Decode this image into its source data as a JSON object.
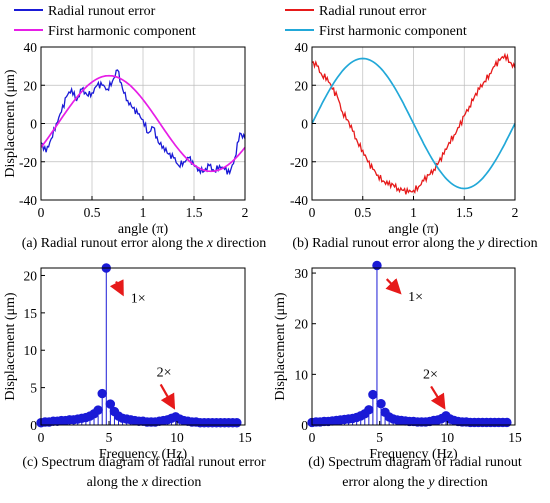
{
  "figure": {
    "panels": [
      {
        "id": "a",
        "caption_parts": [
          "(a) Radial runout error along the ",
          "x",
          " direction"
        ]
      },
      {
        "id": "b",
        "caption_parts": [
          "(b) Radial runout error along the ",
          "y",
          " direction"
        ]
      },
      {
        "id": "c",
        "caption_lines": [
          [
            "(c) Spectrum diagram of radial runout error"
          ],
          [
            "along the ",
            "x",
            " direction"
          ]
        ]
      },
      {
        "id": "d",
        "caption_lines": [
          [
            "(d) Spectrum diagram of radial runout"
          ],
          [
            "error along the ",
            "y",
            " direction"
          ]
        ]
      }
    ]
  },
  "chart_data": [
    {
      "panel": "a",
      "type": "line",
      "xlabel": "angle (π)",
      "ylabel": "Displacement (μm)",
      "xlim": [
        0,
        2
      ],
      "ylim": [
        -40,
        40
      ],
      "xticks": [
        "0",
        "0.5",
        "1",
        "1.5",
        "2"
      ],
      "yticks": [
        "-40",
        "-20",
        "0",
        "20",
        "40"
      ],
      "grid": true,
      "legend_position": "top-left-outside",
      "series": [
        {
          "name": "Radial runout error",
          "color": "#1a1ad6",
          "style": "noisy",
          "x": [
            0,
            0.05,
            0.1,
            0.15,
            0.2,
            0.25,
            0.3,
            0.35,
            0.4,
            0.45,
            0.5,
            0.55,
            0.6,
            0.65,
            0.7,
            0.75,
            0.8,
            0.85,
            0.9,
            0.95,
            1.0,
            1.05,
            1.1,
            1.15,
            1.2,
            1.25,
            1.3,
            1.35,
            1.4,
            1.45,
            1.5,
            1.55,
            1.6,
            1.65,
            1.7,
            1.75,
            1.8,
            1.85,
            1.9,
            1.95,
            2.0
          ],
          "y": [
            -10,
            -15,
            -8,
            0,
            6,
            14,
            18,
            12,
            18,
            15,
            16,
            20,
            20,
            18,
            22,
            28,
            18,
            12,
            8,
            5,
            2,
            -5,
            -2,
            -10,
            -12,
            -16,
            -18,
            -22,
            -20,
            -18,
            -22,
            -24,
            -25,
            -22,
            -25,
            -22,
            -24,
            -26,
            -18,
            -5,
            -8
          ]
        },
        {
          "name": "First harmonic component",
          "color": "#e61ee6",
          "style": "smooth",
          "amplitude": 25,
          "phase_deg": 120
        }
      ]
    },
    {
      "panel": "b",
      "type": "line",
      "xlabel": "angle (π)",
      "ylabel": "",
      "xlim": [
        0,
        2
      ],
      "ylim": [
        -40,
        40
      ],
      "xticks": [
        "0",
        "0.5",
        "1",
        "1.5",
        "2"
      ],
      "yticks": [
        "-40",
        "-20",
        "0",
        "20",
        "40"
      ],
      "grid": true,
      "legend_position": "top-left-outside",
      "series": [
        {
          "name": "Radial runout error",
          "color": "#e61a1a",
          "style": "noisy",
          "x": [
            0,
            0.05,
            0.1,
            0.15,
            0.2,
            0.25,
            0.3,
            0.35,
            0.4,
            0.45,
            0.5,
            0.55,
            0.6,
            0.65,
            0.7,
            0.75,
            0.8,
            0.85,
            0.9,
            0.95,
            1.0,
            1.05,
            1.1,
            1.15,
            1.2,
            1.25,
            1.3,
            1.35,
            1.4,
            1.45,
            1.5,
            1.55,
            1.6,
            1.65,
            1.7,
            1.75,
            1.8,
            1.85,
            1.9,
            1.95,
            2.0
          ],
          "y": [
            32,
            30,
            25,
            24,
            18,
            14,
            6,
            2,
            -4,
            -10,
            -14,
            -20,
            -24,
            -27,
            -30,
            -32,
            -32,
            -34,
            -35,
            -36,
            -35,
            -33,
            -30,
            -27,
            -24,
            -20,
            -16,
            -10,
            -6,
            -2,
            4,
            9,
            14,
            18,
            22,
            26,
            30,
            33,
            36,
            32,
            29
          ]
        },
        {
          "name": "First harmonic component",
          "color": "#22a8d8",
          "style": "smooth",
          "amplitude": 34,
          "phase_deg": 90
        }
      ]
    },
    {
      "panel": "c",
      "type": "stem",
      "xlabel": "Frequency (Hz)",
      "ylabel": "Displacement (μm)",
      "xlim": [
        0,
        15
      ],
      "ylim": [
        0,
        21
      ],
      "xticks": [
        "0",
        "5",
        "10",
        "15"
      ],
      "yticks": [
        "0",
        "5",
        "10",
        "15",
        "20"
      ],
      "grid": false,
      "color": "#1a1ad6",
      "x": [
        0,
        0.3,
        0.6,
        0.9,
        1.2,
        1.5,
        1.8,
        2.1,
        2.4,
        2.7,
        3.0,
        3.3,
        3.6,
        3.9,
        4.2,
        4.5,
        4.8,
        5.1,
        5.4,
        5.7,
        6.0,
        6.3,
        6.6,
        6.9,
        7.2,
        7.5,
        7.8,
        8.1,
        8.4,
        8.7,
        9.0,
        9.3,
        9.6,
        9.9,
        10.2,
        10.5,
        10.8,
        11.1,
        11.4,
        11.7,
        12.0,
        12.3,
        12.6,
        12.9,
        13.2,
        13.5,
        13.8,
        14.1,
        14.4
      ],
      "y": [
        0.3,
        0.4,
        0.4,
        0.5,
        0.5,
        0.6,
        0.6,
        0.7,
        0.7,
        0.8,
        0.9,
        1.0,
        1.2,
        1.5,
        2.0,
        4.2,
        21.0,
        2.8,
        1.8,
        1.2,
        0.9,
        0.8,
        0.7,
        0.6,
        0.5,
        0.5,
        0.4,
        0.4,
        0.4,
        0.5,
        0.6,
        0.7,
        0.9,
        1.1,
        0.8,
        0.6,
        0.5,
        0.4,
        0.4,
        0.3,
        0.3,
        0.3,
        0.3,
        0.3,
        0.3,
        0.3,
        0.3,
        0.3,
        0.3
      ],
      "annotations": [
        {
          "text": "1×",
          "x": 5.3,
          "y": 20.0,
          "label_x": 6.6,
          "label_y": 16.4
        },
        {
          "text": "2×",
          "x": 10.0,
          "y": 1.5,
          "label_x": 8.5,
          "label_y": 6.5
        }
      ]
    },
    {
      "panel": "d",
      "type": "stem",
      "xlabel": "Frequency (Hz)",
      "ylabel": "Displacement (μm)",
      "xlim": [
        0,
        15
      ],
      "ylim": [
        0,
        31
      ],
      "xticks": [
        "0",
        "5",
        "10",
        "15"
      ],
      "yticks": [
        "0",
        "10",
        "20",
        "30"
      ],
      "grid": false,
      "color": "#1a1ad6",
      "x": [
        0,
        0.3,
        0.6,
        0.9,
        1.2,
        1.5,
        1.8,
        2.1,
        2.4,
        2.7,
        3.0,
        3.3,
        3.6,
        3.9,
        4.2,
        4.5,
        4.8,
        5.1,
        5.4,
        5.7,
        6.0,
        6.3,
        6.6,
        6.9,
        7.2,
        7.5,
        7.8,
        8.1,
        8.4,
        8.7,
        9.0,
        9.3,
        9.6,
        9.9,
        10.2,
        10.5,
        10.8,
        11.1,
        11.4,
        11.7,
        12.0,
        12.3,
        12.6,
        12.9,
        13.2,
        13.5,
        13.8,
        14.1,
        14.4
      ],
      "y": [
        0.5,
        0.6,
        0.6,
        0.7,
        0.7,
        0.8,
        0.9,
        1.0,
        1.1,
        1.2,
        1.3,
        1.5,
        1.8,
        2.2,
        3.0,
        6.0,
        31.5,
        4.2,
        2.5,
        1.6,
        1.2,
        1.0,
        0.9,
        0.8,
        0.7,
        0.7,
        0.6,
        0.6,
        0.6,
        0.7,
        0.9,
        1.0,
        1.3,
        1.8,
        1.2,
        0.9,
        0.7,
        0.6,
        0.6,
        0.5,
        0.5,
        0.5,
        0.5,
        0.5,
        0.5,
        0.5,
        0.5,
        0.5,
        0.5
      ],
      "annotations": [
        {
          "text": "1×",
          "x": 5.3,
          "y": 30.0,
          "label_x": 7.1,
          "label_y": 24.5
        },
        {
          "text": "2×",
          "x": 10.0,
          "y": 2.2,
          "label_x": 8.2,
          "label_y": 9.2
        }
      ]
    }
  ]
}
